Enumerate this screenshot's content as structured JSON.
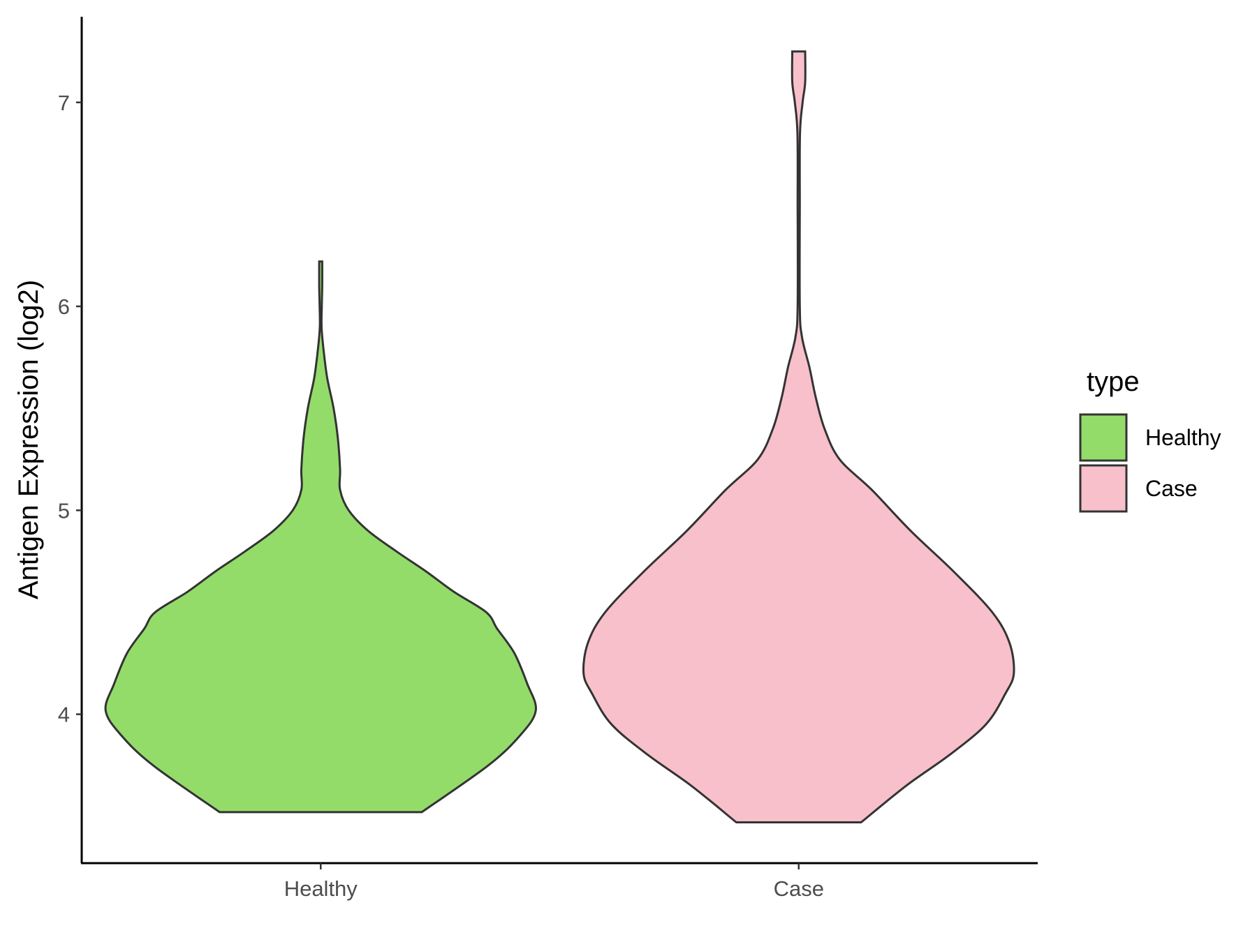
{
  "chart_data": {
    "type": "violin",
    "xlabel": "",
    "ylabel": "Antigen Expression (log2)",
    "ylim": [
      3.27,
      7.42
    ],
    "y_ticks": [
      4,
      5,
      6,
      7
    ],
    "categories": [
      "Healthy",
      "Case"
    ],
    "legend": {
      "title": "type",
      "position": "right",
      "entries": [
        {
          "label": "Healthy",
          "color": "#93DC6A"
        },
        {
          "label": "Case",
          "color": "#F7C0CB"
        }
      ]
    },
    "series": [
      {
        "name": "Healthy",
        "color": "#93DC6A",
        "y_min": 3.52,
        "y_max": 6.22,
        "density_profile": [
          [
            3.52,
            0.47
          ],
          [
            3.75,
            0.78
          ],
          [
            3.9,
            0.93
          ],
          [
            4.02,
            1.0
          ],
          [
            4.15,
            0.96
          ],
          [
            4.3,
            0.9
          ],
          [
            4.42,
            0.82
          ],
          [
            4.5,
            0.77
          ],
          [
            4.6,
            0.62
          ],
          [
            4.7,
            0.49
          ],
          [
            4.8,
            0.35
          ],
          [
            4.9,
            0.22
          ],
          [
            5.0,
            0.13
          ],
          [
            5.1,
            0.09
          ],
          [
            5.2,
            0.09
          ],
          [
            5.35,
            0.08
          ],
          [
            5.5,
            0.06
          ],
          [
            5.65,
            0.03
          ],
          [
            5.8,
            0.012
          ],
          [
            5.9,
            0.004
          ],
          [
            6.0,
            0.005
          ],
          [
            6.1,
            0.007
          ],
          [
            6.22,
            0.007
          ]
        ]
      },
      {
        "name": "Case",
        "color": "#F7C0CB",
        "y_min": 3.47,
        "y_max": 7.25,
        "density_profile": [
          [
            3.47,
            0.29
          ],
          [
            3.65,
            0.5
          ],
          [
            3.8,
            0.7
          ],
          [
            3.95,
            0.87
          ],
          [
            4.1,
            0.96
          ],
          [
            4.2,
            1.0
          ],
          [
            4.35,
            0.98
          ],
          [
            4.5,
            0.9
          ],
          [
            4.7,
            0.72
          ],
          [
            4.9,
            0.52
          ],
          [
            5.1,
            0.34
          ],
          [
            5.25,
            0.19
          ],
          [
            5.4,
            0.12
          ],
          [
            5.55,
            0.08
          ],
          [
            5.7,
            0.05
          ],
          [
            5.85,
            0.015
          ],
          [
            6.0,
            0.005
          ],
          [
            6.5,
            0.005
          ],
          [
            6.85,
            0.006
          ],
          [
            7.0,
            0.018
          ],
          [
            7.1,
            0.03
          ],
          [
            7.25,
            0.03
          ]
        ]
      }
    ]
  }
}
